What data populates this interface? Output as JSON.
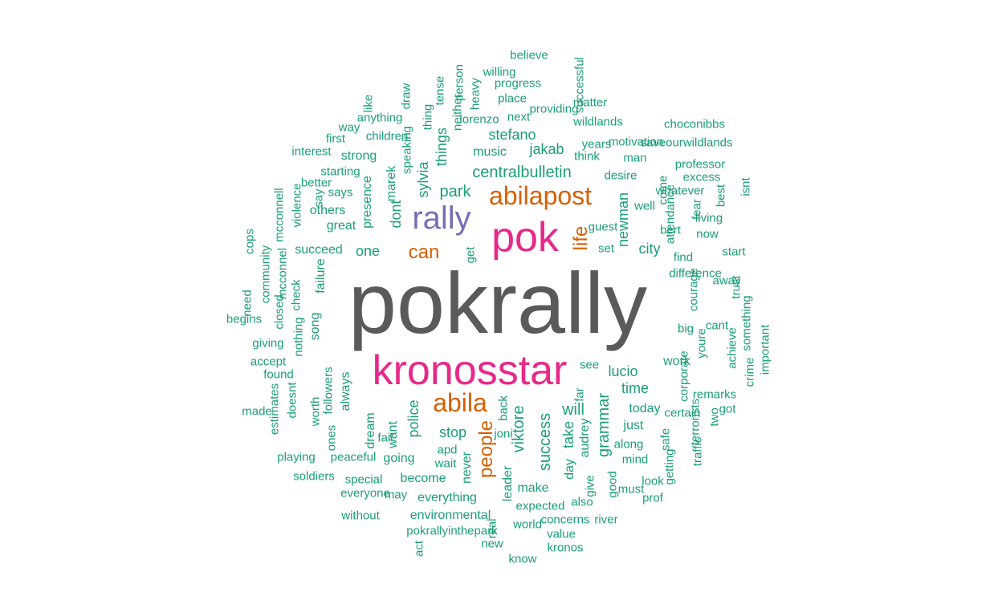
{
  "palette": {
    "c1": "#5a5a5a",
    "c2": "#e7298a",
    "c3": "#7570b3",
    "c4": "#d95f02",
    "c5": "#1b9e77"
  },
  "words": [
    {
      "text": "pokrally",
      "color": "c1",
      "rotated": false
    },
    {
      "text": "pok",
      "color": "c2",
      "rotated": false
    },
    {
      "text": "kronosstar",
      "color": "c2",
      "rotated": false
    },
    {
      "text": "rally",
      "color": "c3",
      "rotated": false
    },
    {
      "text": "abilapost",
      "color": "c4",
      "rotated": false
    },
    {
      "text": "abila",
      "color": "c4",
      "rotated": false
    },
    {
      "text": "people",
      "color": "c4",
      "rotated": true
    },
    {
      "text": "can",
      "color": "c4",
      "rotated": false
    },
    {
      "text": "life",
      "color": "c4",
      "rotated": true
    },
    {
      "text": "centralbulletin",
      "color": "c5",
      "rotated": false
    },
    {
      "text": "park",
      "color": "c5",
      "rotated": false
    },
    {
      "text": "viktore",
      "color": "c5",
      "rotated": true
    },
    {
      "text": "success",
      "color": "c5",
      "rotated": true
    },
    {
      "text": "grammar",
      "color": "c5",
      "rotated": true
    },
    {
      "text": "will",
      "color": "c5",
      "rotated": false
    },
    {
      "text": "lucio",
      "color": "c5",
      "rotated": false
    },
    {
      "text": "time",
      "color": "c5",
      "rotated": false
    },
    {
      "text": "police",
      "color": "c5",
      "rotated": true
    },
    {
      "text": "stop",
      "color": "c5",
      "rotated": false
    },
    {
      "text": "take",
      "color": "c5",
      "rotated": true
    },
    {
      "text": "jakab",
      "color": "c5",
      "rotated": false
    },
    {
      "text": "stefano",
      "color": "c5",
      "rotated": false
    },
    {
      "text": "newman",
      "color": "c5",
      "rotated": true
    },
    {
      "text": "dont",
      "color": "c5",
      "rotated": true
    },
    {
      "text": "sylvia",
      "color": "c5",
      "rotated": true
    },
    {
      "text": "things",
      "color": "c5",
      "rotated": true
    },
    {
      "text": "one",
      "color": "c5",
      "rotated": false
    },
    {
      "text": "city",
      "color": "c5",
      "rotated": false
    },
    {
      "text": "marek",
      "color": "c5",
      "rotated": true
    },
    {
      "text": "presence",
      "color": "c5",
      "rotated": true
    },
    {
      "text": "want",
      "color": "c5",
      "rotated": true
    },
    {
      "text": "audrey",
      "color": "c5",
      "rotated": true
    },
    {
      "text": "today",
      "color": "c5",
      "rotated": false
    },
    {
      "text": "work",
      "color": "c5",
      "rotated": false
    },
    {
      "text": "just",
      "color": "c5",
      "rotated": false
    },
    {
      "text": "day",
      "color": "c5",
      "rotated": true
    },
    {
      "text": "make",
      "color": "c5",
      "rotated": false
    },
    {
      "text": "going",
      "color": "c5",
      "rotated": false
    },
    {
      "text": "become",
      "color": "c5",
      "rotated": false
    },
    {
      "text": "everything",
      "color": "c5",
      "rotated": false
    },
    {
      "text": "environmental",
      "color": "c5",
      "rotated": false
    },
    {
      "text": "never",
      "color": "c5",
      "rotated": true
    },
    {
      "text": "leader",
      "color": "c5",
      "rotated": true
    },
    {
      "text": "dream",
      "color": "c5",
      "rotated": true
    },
    {
      "text": "music",
      "color": "c5",
      "rotated": false
    },
    {
      "text": "strong",
      "color": "c5",
      "rotated": false
    },
    {
      "text": "great",
      "color": "c5",
      "rotated": false
    },
    {
      "text": "others",
      "color": "c5",
      "rotated": false
    },
    {
      "text": "succeed",
      "color": "c5",
      "rotated": false
    },
    {
      "text": "failure",
      "color": "c5",
      "rotated": true
    },
    {
      "text": "song",
      "color": "c5",
      "rotated": true
    },
    {
      "text": "always",
      "color": "c5",
      "rotated": true
    },
    {
      "text": "worth",
      "color": "c5",
      "rotated": true
    },
    {
      "text": "followers",
      "color": "c5",
      "rotated": true
    },
    {
      "text": "ones",
      "color": "c5",
      "rotated": true
    },
    {
      "text": "peaceful",
      "color": "c5",
      "rotated": false
    },
    {
      "text": "special",
      "color": "c5",
      "rotated": false
    },
    {
      "text": "soldiers",
      "color": "c5",
      "rotated": false
    },
    {
      "text": "playing",
      "color": "c5",
      "rotated": false
    },
    {
      "text": "children",
      "color": "c5",
      "rotated": false
    },
    {
      "text": "lorenzo",
      "color": "c5",
      "rotated": false
    },
    {
      "text": "next",
      "color": "c5",
      "rotated": false
    },
    {
      "text": "place",
      "color": "c5",
      "rotated": false
    },
    {
      "text": "progress",
      "color": "c5",
      "rotated": false
    },
    {
      "text": "willing",
      "color": "c5",
      "rotated": false
    },
    {
      "text": "believe",
      "color": "c5",
      "rotated": false
    },
    {
      "text": "providing",
      "color": "c5",
      "rotated": false
    },
    {
      "text": "successful",
      "color": "c5",
      "rotated": true
    },
    {
      "text": "matter",
      "color": "c5",
      "rotated": false
    },
    {
      "text": "wildlands",
      "color": "c5",
      "rotated": false
    },
    {
      "text": "choconibbs",
      "color": "c5",
      "rotated": false
    },
    {
      "text": "saveourwildlands",
      "color": "c5",
      "rotated": false
    },
    {
      "text": "motivation",
      "color": "c5",
      "rotated": false
    },
    {
      "text": "years",
      "color": "c5",
      "rotated": false
    },
    {
      "text": "think",
      "color": "c5",
      "rotated": false
    },
    {
      "text": "man",
      "color": "c5",
      "rotated": false
    },
    {
      "text": "professor",
      "color": "c5",
      "rotated": false
    },
    {
      "text": "excess",
      "color": "c5",
      "rotated": false
    },
    {
      "text": "desire",
      "color": "c5",
      "rotated": false
    },
    {
      "text": "whatever",
      "color": "c5",
      "rotated": false
    },
    {
      "text": "well",
      "color": "c5",
      "rotated": false
    },
    {
      "text": "come",
      "color": "c5",
      "rotated": true
    },
    {
      "text": "fear",
      "color": "c5",
      "rotated": true
    },
    {
      "text": "best",
      "color": "c5",
      "rotated": true
    },
    {
      "text": "isnt",
      "color": "c5",
      "rotated": true
    },
    {
      "text": "attendance",
      "color": "c5",
      "rotated": true
    },
    {
      "text": "living",
      "color": "c5",
      "rotated": false
    },
    {
      "text": "bert",
      "color": "c5",
      "rotated": false
    },
    {
      "text": "now",
      "color": "c5",
      "rotated": false
    },
    {
      "text": "guest",
      "color": "c5",
      "rotated": false
    },
    {
      "text": "set",
      "color": "c5",
      "rotated": false
    },
    {
      "text": "get",
      "color": "c5",
      "rotated": true
    },
    {
      "text": "find",
      "color": "c5",
      "rotated": false
    },
    {
      "text": "start",
      "color": "c5",
      "rotated": false
    },
    {
      "text": "difference",
      "color": "c5",
      "rotated": false
    },
    {
      "text": "away",
      "color": "c5",
      "rotated": false
    },
    {
      "text": "trust",
      "color": "c5",
      "rotated": true
    },
    {
      "text": "courage",
      "color": "c5",
      "rotated": true
    },
    {
      "text": "cant",
      "color": "c5",
      "rotated": false
    },
    {
      "text": "something",
      "color": "c5",
      "rotated": true
    },
    {
      "text": "big",
      "color": "c5",
      "rotated": false
    },
    {
      "text": "youre",
      "color": "c5",
      "rotated": true
    },
    {
      "text": "achieve",
      "color": "c5",
      "rotated": true
    },
    {
      "text": "crime",
      "color": "c5",
      "rotated": true
    },
    {
      "text": "important",
      "color": "c5",
      "rotated": true
    },
    {
      "text": "corporate",
      "color": "c5",
      "rotated": true
    },
    {
      "text": "remarks",
      "color": "c5",
      "rotated": false
    },
    {
      "text": "got",
      "color": "c5",
      "rotated": false
    },
    {
      "text": "certain",
      "color": "c5",
      "rotated": false
    },
    {
      "text": "terrorists",
      "color": "c5",
      "rotated": true
    },
    {
      "text": "two",
      "color": "c5",
      "rotated": true
    },
    {
      "text": "safe",
      "color": "c5",
      "rotated": true
    },
    {
      "text": "traffic",
      "color": "c5",
      "rotated": true
    },
    {
      "text": "getting",
      "color": "c5",
      "rotated": true
    },
    {
      "text": "mind",
      "color": "c5",
      "rotated": false
    },
    {
      "text": "along",
      "color": "c5",
      "rotated": false
    },
    {
      "text": "look",
      "color": "c5",
      "rotated": false
    },
    {
      "text": "prof",
      "color": "c5",
      "rotated": false
    },
    {
      "text": "must",
      "color": "c5",
      "rotated": false
    },
    {
      "text": "good",
      "color": "c5",
      "rotated": true
    },
    {
      "text": "give",
      "color": "c5",
      "rotated": true
    },
    {
      "text": "also",
      "color": "c5",
      "rotated": false
    },
    {
      "text": "river",
      "color": "c5",
      "rotated": false
    },
    {
      "text": "concerns",
      "color": "c5",
      "rotated": false
    },
    {
      "text": "value",
      "color": "c5",
      "rotated": false
    },
    {
      "text": "kronos",
      "color": "c5",
      "rotated": false
    },
    {
      "text": "know",
      "color": "c5",
      "rotated": false
    },
    {
      "text": "expected",
      "color": "c5",
      "rotated": false
    },
    {
      "text": "world",
      "color": "c5",
      "rotated": false
    },
    {
      "text": "real",
      "color": "c5",
      "rotated": true
    },
    {
      "text": "new",
      "color": "c5",
      "rotated": false
    },
    {
      "text": "act",
      "color": "c5",
      "rotated": true
    },
    {
      "text": "pokrallyinthepark",
      "color": "c5",
      "rotated": false
    },
    {
      "text": "without",
      "color": "c5",
      "rotated": false
    },
    {
      "text": "everyone",
      "color": "c5",
      "rotated": false
    },
    {
      "text": "may",
      "color": "c5",
      "rotated": false
    },
    {
      "text": "wait",
      "color": "c5",
      "rotated": false
    },
    {
      "text": "apd",
      "color": "c5",
      "rotated": false
    },
    {
      "text": "fail",
      "color": "c5",
      "rotated": false
    },
    {
      "text": "joni",
      "color": "c5",
      "rotated": false
    },
    {
      "text": "back",
      "color": "c5",
      "rotated": true
    },
    {
      "text": "far",
      "color": "c5",
      "rotated": true
    },
    {
      "text": "see",
      "color": "c5",
      "rotated": false
    },
    {
      "text": "like",
      "color": "c5",
      "rotated": true
    },
    {
      "text": "anything",
      "color": "c5",
      "rotated": false
    },
    {
      "text": "way",
      "color": "c5",
      "rotated": false
    },
    {
      "text": "first",
      "color": "c5",
      "rotated": false
    },
    {
      "text": "interest",
      "color": "c5",
      "rotated": false
    },
    {
      "text": "starting",
      "color": "c5",
      "rotated": false
    },
    {
      "text": "says",
      "color": "c5",
      "rotated": false
    },
    {
      "text": "better",
      "color": "c5",
      "rotated": false
    },
    {
      "text": "draw",
      "color": "c5",
      "rotated": true
    },
    {
      "text": "speaking",
      "color": "c5",
      "rotated": true
    },
    {
      "text": "thing",
      "color": "c5",
      "rotated": true
    },
    {
      "text": "tense",
      "color": "c5",
      "rotated": true
    },
    {
      "text": "neither",
      "color": "c5",
      "rotated": true
    },
    {
      "text": "person",
      "color": "c5",
      "rotated": true
    },
    {
      "text": "heavy",
      "color": "c5",
      "rotated": true
    },
    {
      "text": "say",
      "color": "c5",
      "rotated": true
    },
    {
      "text": "violence",
      "color": "c5",
      "rotated": true
    },
    {
      "text": "mcconnell",
      "color": "c5",
      "rotated": true
    },
    {
      "text": "cops",
      "color": "c5",
      "rotated": true
    },
    {
      "text": "community",
      "color": "c5",
      "rotated": true
    },
    {
      "text": "mcconnel",
      "color": "c5",
      "rotated": true
    },
    {
      "text": "closed",
      "color": "c5",
      "rotated": true
    },
    {
      "text": "check",
      "color": "c5",
      "rotated": true
    },
    {
      "text": "nothing",
      "color": "c5",
      "rotated": true
    },
    {
      "text": "need",
      "color": "c5",
      "rotated": true
    },
    {
      "text": "begins",
      "color": "c5",
      "rotated": false
    },
    {
      "text": "giving",
      "color": "c5",
      "rotated": false
    },
    {
      "text": "accept",
      "color": "c5",
      "rotated": false
    },
    {
      "text": "found",
      "color": "c5",
      "rotated": false
    },
    {
      "text": "made",
      "color": "c5",
      "rotated": false
    },
    {
      "text": "estimates",
      "color": "c5",
      "rotated": true
    },
    {
      "text": "doesnt",
      "color": "c5",
      "rotated": true
    },
    {
      "text": "violence",
      "color": "c5",
      "rotated": true
    }
  ]
}
